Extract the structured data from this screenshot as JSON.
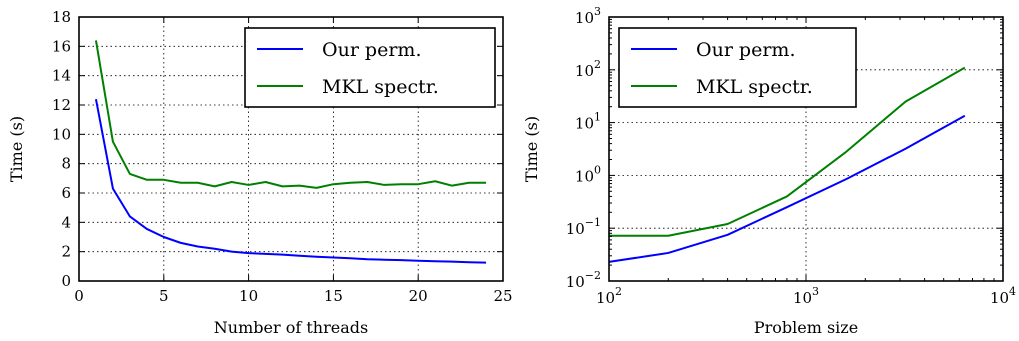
{
  "chart_data": [
    {
      "type": "line",
      "xlabel": "Number of threads",
      "ylabel": "Time (s)",
      "xlim": [
        0,
        25
      ],
      "ylim": [
        0,
        18
      ],
      "xticks": [
        0,
        5,
        10,
        15,
        20,
        25
      ],
      "yticks": [
        0,
        2,
        4,
        6,
        8,
        10,
        12,
        14,
        16,
        18
      ],
      "xtick_labels": [
        "0",
        "5",
        "10",
        "15",
        "20",
        "25"
      ],
      "ytick_labels": [
        "0",
        "2",
        "4",
        "6",
        "8",
        "10",
        "12",
        "14",
        "16",
        "18"
      ],
      "xscale": "linear",
      "yscale": "linear",
      "grid": true,
      "legend_position": "top-right",
      "series": [
        {
          "name": "Our perm.",
          "color": "#0000ff",
          "x": [
            1,
            2,
            3,
            4,
            5,
            6,
            7,
            8,
            9,
            10,
            11,
            12,
            13,
            14,
            15,
            16,
            17,
            18,
            19,
            20,
            21,
            22,
            23,
            24
          ],
          "y": [
            12.4,
            6.3,
            4.4,
            3.55,
            3.0,
            2.6,
            2.35,
            2.2,
            2.0,
            1.9,
            1.85,
            1.8,
            1.72,
            1.65,
            1.6,
            1.55,
            1.48,
            1.45,
            1.42,
            1.38,
            1.35,
            1.32,
            1.28,
            1.25
          ]
        },
        {
          "name": "MKL spectr.",
          "color": "#008000",
          "x": [
            1,
            2,
            3,
            4,
            5,
            6,
            7,
            8,
            9,
            10,
            11,
            12,
            13,
            14,
            15,
            16,
            17,
            18,
            19,
            20,
            21,
            22,
            23,
            24
          ],
          "y": [
            16.4,
            9.5,
            7.3,
            6.9,
            6.9,
            6.7,
            6.7,
            6.45,
            6.75,
            6.55,
            6.75,
            6.45,
            6.5,
            6.35,
            6.6,
            6.7,
            6.75,
            6.55,
            6.6,
            6.6,
            6.8,
            6.5,
            6.7,
            6.7
          ]
        }
      ]
    },
    {
      "type": "line",
      "xlabel": "Problem size",
      "ylabel": "Time (s)",
      "xlim": [
        100,
        10000
      ],
      "ylim": [
        0.01,
        1000
      ],
      "xscale": "log",
      "yscale": "log",
      "xticks": [
        {
          "base": "10",
          "exp": "2"
        },
        {
          "base": "10",
          "exp": "3"
        },
        {
          "base": "10",
          "exp": "4"
        }
      ],
      "yticks": [
        {
          "base": "10",
          "exp": "−2"
        },
        {
          "base": "10",
          "exp": "−1"
        },
        {
          "base": "10",
          "exp": "0"
        },
        {
          "base": "10",
          "exp": "1"
        },
        {
          "base": "10",
          "exp": "2"
        },
        {
          "base": "10",
          "exp": "3"
        }
      ],
      "grid": true,
      "legend_position": "top-left",
      "series": [
        {
          "name": "Our perm.",
          "color": "#0000ff",
          "x": [
            100,
            200,
            400,
            800,
            1600,
            3200,
            6400
          ],
          "y": [
            0.023,
            0.034,
            0.075,
            0.25,
            0.85,
            3.2,
            13.5
          ]
        },
        {
          "name": "MKL spectr.",
          "color": "#008000",
          "x": [
            100,
            200,
            400,
            800,
            1600,
            3200,
            6400
          ],
          "y": [
            0.072,
            0.072,
            0.12,
            0.4,
            2.8,
            25,
            110
          ]
        }
      ]
    }
  ]
}
